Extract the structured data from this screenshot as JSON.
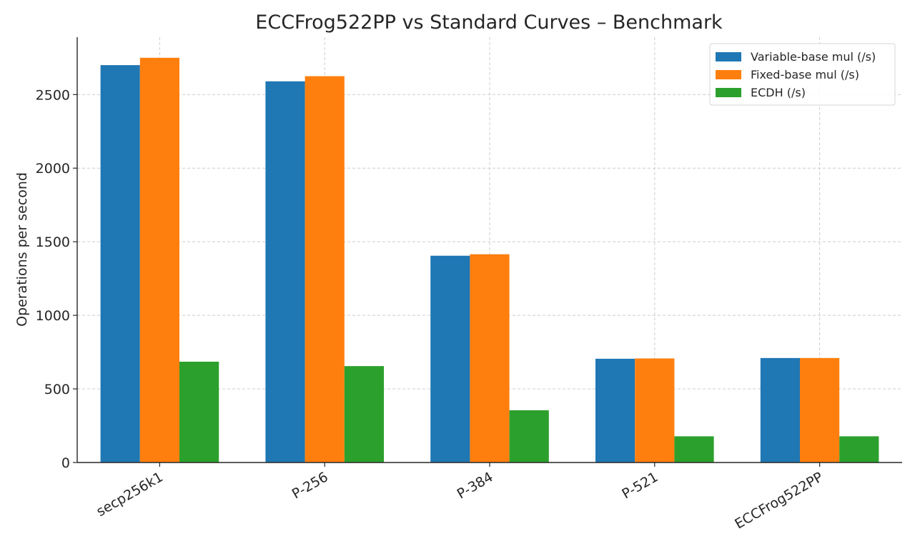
{
  "chart_data": {
    "type": "bar",
    "title": "ECCFrog522PP vs Standard Curves – Benchmark",
    "xlabel": "",
    "ylabel": "Operations per second",
    "categories": [
      "secp256k1",
      "P-256",
      "P-384",
      "P-521",
      "ECCFrog522PP"
    ],
    "series": [
      {
        "name": "Variable-base mul (/s)",
        "color": "#1f77b4",
        "values": [
          2700,
          2590,
          1405,
          705,
          710
        ]
      },
      {
        "name": "Fixed-base mul (/s)",
        "color": "#ff7f0e",
        "values": [
          2750,
          2625,
          1415,
          707,
          710
        ]
      },
      {
        "name": "ECDH (/s)",
        "color": "#2ca02c",
        "values": [
          685,
          655,
          355,
          178,
          178
        ]
      }
    ],
    "ylim": [
      0,
      2890
    ],
    "yticks": [
      0,
      500,
      1000,
      1500,
      2000,
      2500
    ],
    "grid": true,
    "legend_position": "top-right",
    "xtick_rotation": "30 degrees"
  }
}
